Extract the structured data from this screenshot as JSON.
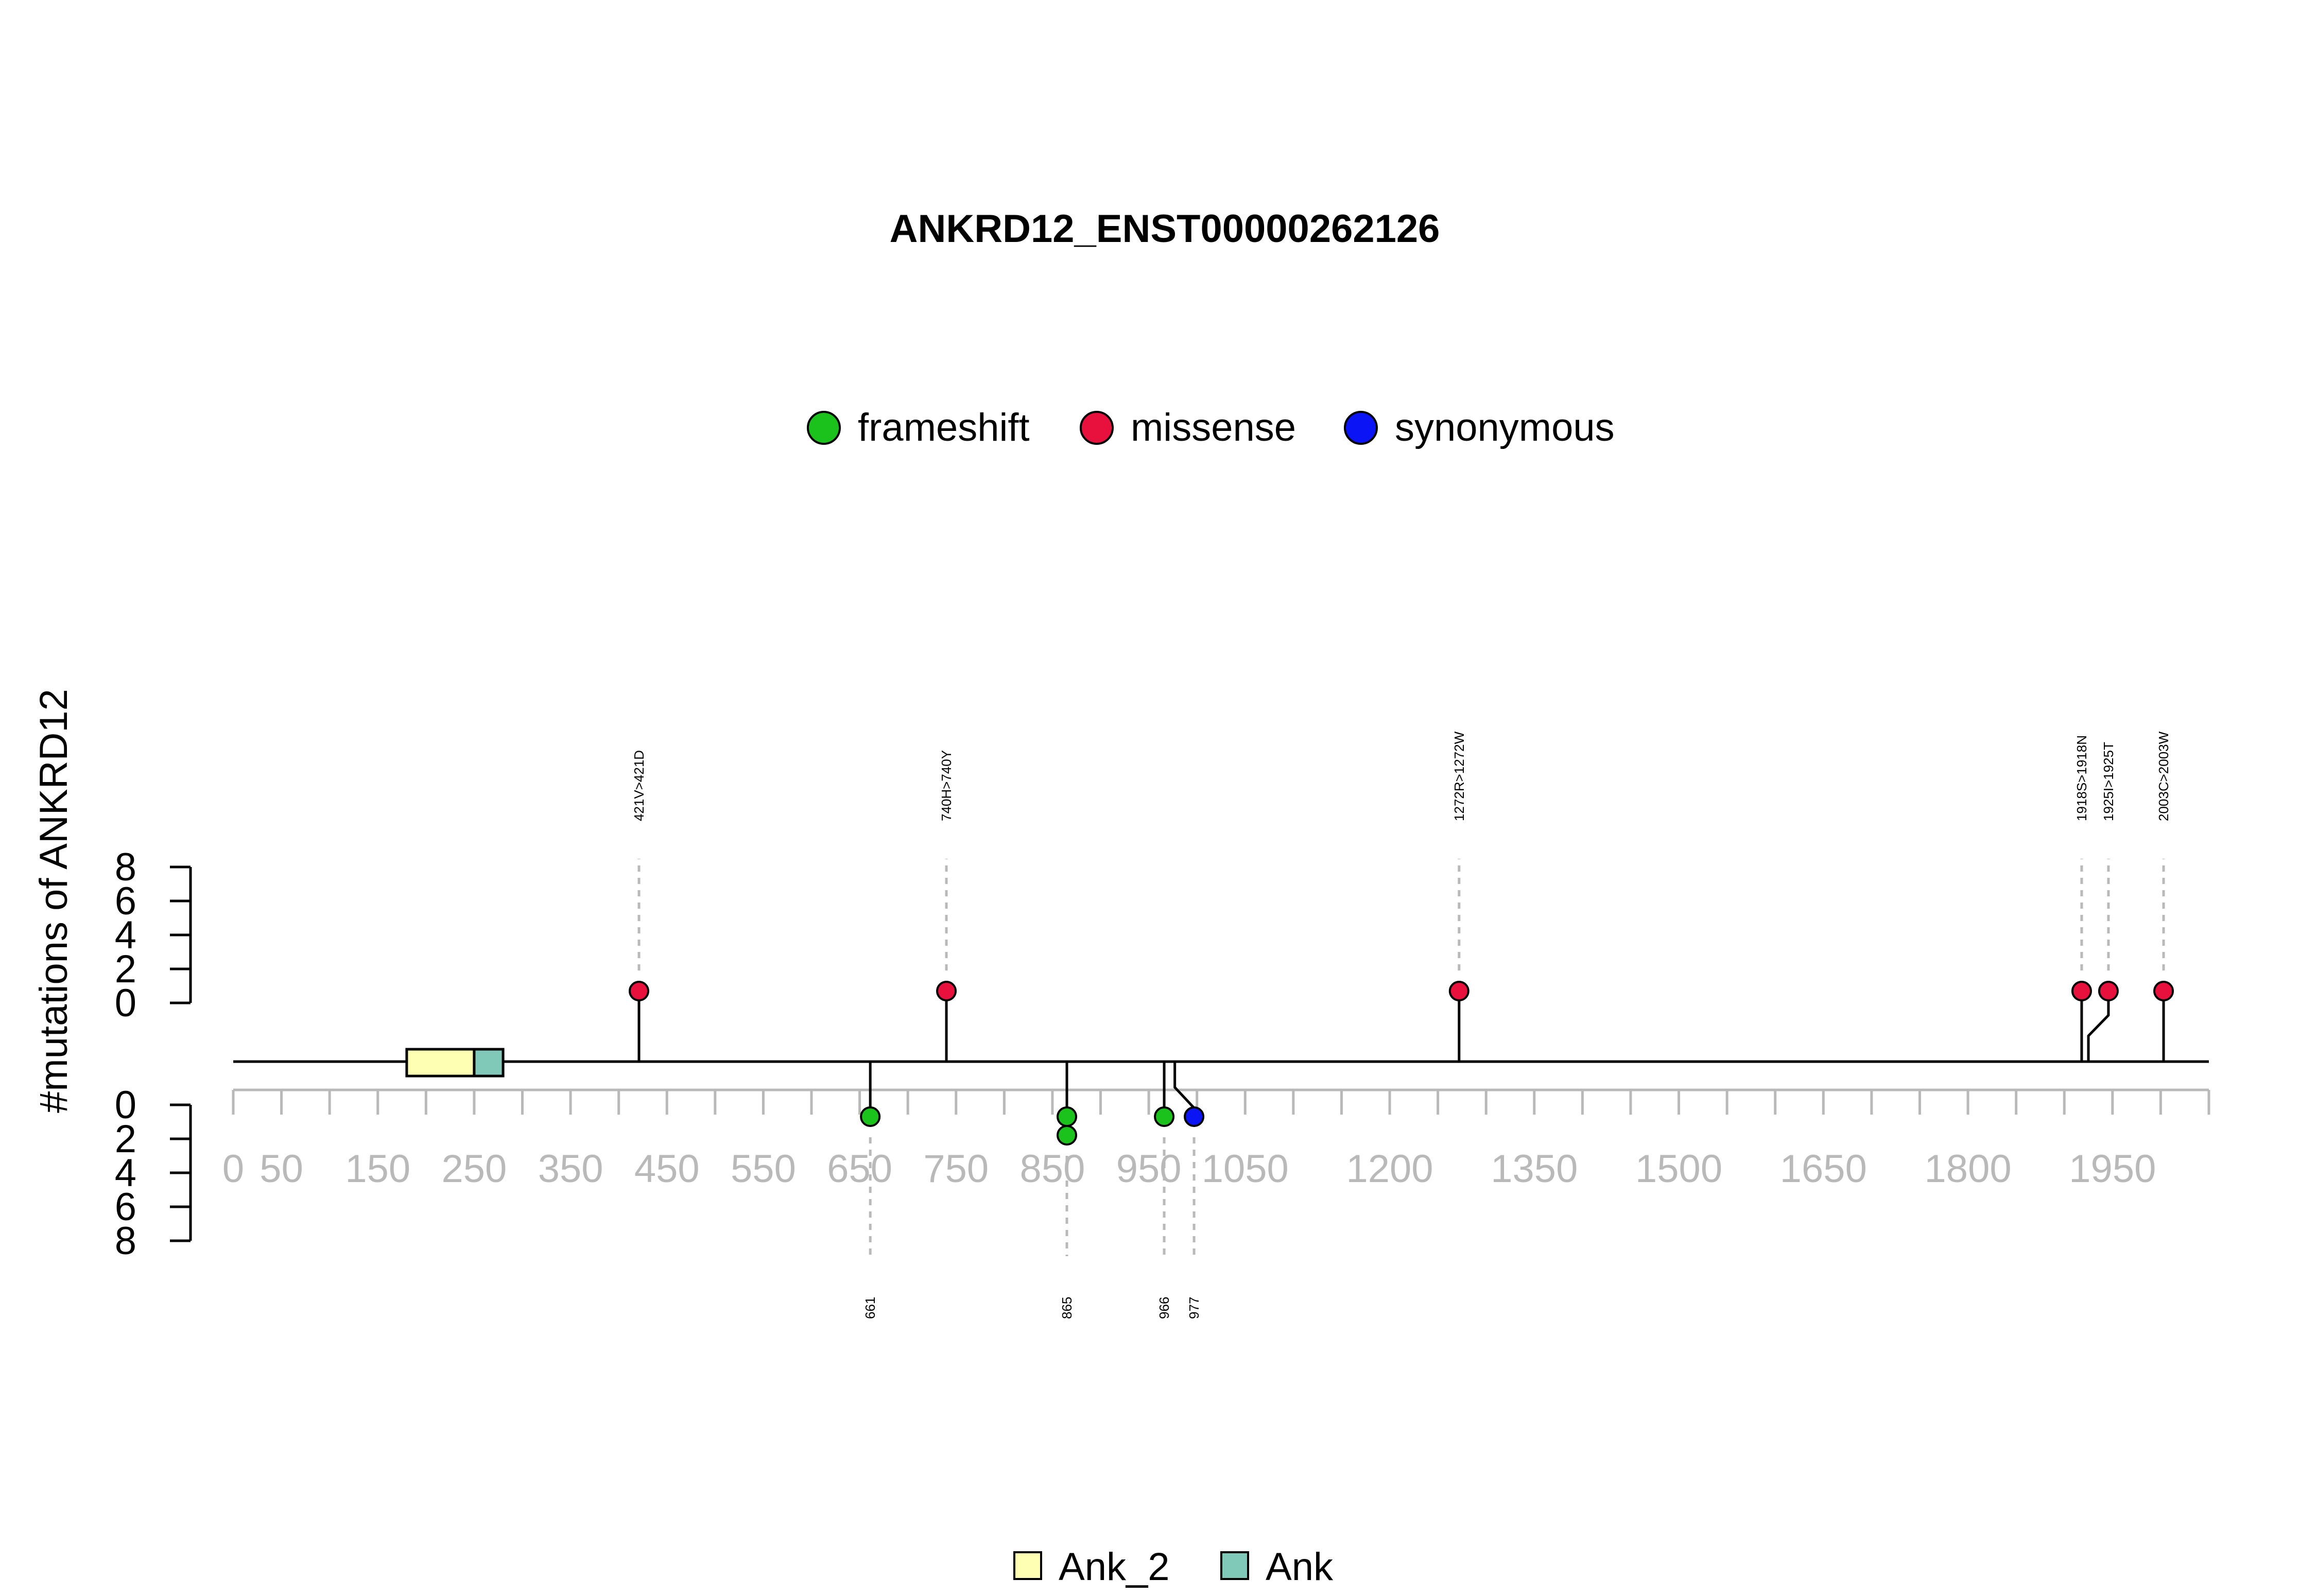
{
  "chart_data": {
    "type": "lollipop",
    "title": "ANKRD12_ENST00000262126",
    "ylabel": "#mutations of ANKRD12",
    "y_ticks": [
      "0",
      "2",
      "4",
      "6",
      "8"
    ],
    "ylim": [
      0,
      8
    ],
    "x_ticks": [
      0,
      50,
      100,
      150,
      200,
      250,
      300,
      350,
      400,
      450,
      500,
      550,
      600,
      650,
      700,
      750,
      800,
      850,
      900,
      950,
      1000,
      1050,
      1100,
      1150,
      1200,
      1250,
      1300,
      1350,
      1400,
      1450,
      1500,
      1550,
      1600,
      1650,
      1700,
      1750,
      1800,
      1850,
      1900,
      1950,
      2000,
      2050
    ],
    "x_tick_labels": [
      {
        "value": 0,
        "label": "0"
      },
      {
        "value": 50,
        "label": "50"
      },
      {
        "value": 150,
        "label": "150"
      },
      {
        "value": 250,
        "label": "250"
      },
      {
        "value": 350,
        "label": "350"
      },
      {
        "value": 450,
        "label": "450"
      },
      {
        "value": 550,
        "label": "550"
      },
      {
        "value": 650,
        "label": "650"
      },
      {
        "value": 750,
        "label": "750"
      },
      {
        "value": 850,
        "label": "850"
      },
      {
        "value": 950,
        "label": "950"
      },
      {
        "value": 1050,
        "label": "1050"
      },
      {
        "value": 1200,
        "label": "1200"
      },
      {
        "value": 1350,
        "label": "1350"
      },
      {
        "value": 1500,
        "label": "1500"
      },
      {
        "value": 1650,
        "label": "1650"
      },
      {
        "value": 1800,
        "label": "1800"
      },
      {
        "value": 1950,
        "label": "1950"
      }
    ],
    "xlim": [
      0,
      2050
    ],
    "legend": [
      {
        "name": "frameshift",
        "color": "#1cc21c"
      },
      {
        "name": "missense",
        "color": "#e8103c"
      },
      {
        "name": "synonymous",
        "color": "#0a14f5"
      }
    ],
    "domains": [
      {
        "name": "Ank_2",
        "start": 180,
        "end": 250,
        "color": "#ffffb3"
      },
      {
        "name": "Ank",
        "start": 250,
        "end": 280,
        "color": "#80c9b9"
      }
    ],
    "mutations_top": [
      {
        "label": "421V>421D",
        "position": 421,
        "count": 1,
        "type": "missense",
        "color": "#e8103c"
      },
      {
        "label": "740H>740Y",
        "position": 740,
        "count": 1,
        "type": "missense",
        "color": "#e8103c"
      },
      {
        "label": "1272R>1272W",
        "position": 1272,
        "count": 1,
        "type": "missense",
        "color": "#e8103c"
      },
      {
        "label": "1918S>1918N",
        "position": 1918,
        "count": 1,
        "type": "missense",
        "color": "#e8103c"
      },
      {
        "label": "1925I>1925T",
        "position": 1925,
        "count": 1,
        "type": "missense",
        "color": "#e8103c"
      },
      {
        "label": "2003C>2003W",
        "position": 2003,
        "count": 1,
        "type": "missense",
        "color": "#e8103c"
      }
    ],
    "mutations_bottom": [
      {
        "label": "661",
        "position": 661,
        "count": 1,
        "type": "frameshift",
        "color": "#1cc21c"
      },
      {
        "label": "865",
        "position": 865,
        "count": 2,
        "type": "frameshift",
        "color": "#1cc21c"
      },
      {
        "label": "966",
        "position": 966,
        "count": 1,
        "type": "frameshift",
        "color": "#1cc21c"
      },
      {
        "label": "977",
        "position": 977,
        "count": 1,
        "type": "synonymous",
        "color": "#0a14f5"
      }
    ]
  }
}
